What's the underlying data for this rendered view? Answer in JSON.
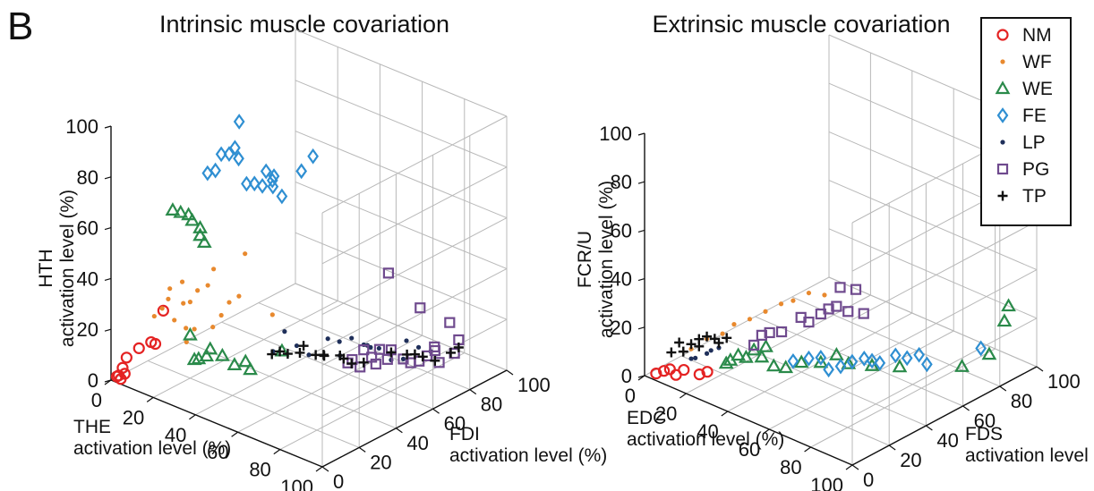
{
  "panel_label": "B",
  "legend": {
    "items": [
      {
        "label": "NM",
        "marker": "circle",
        "color": "#e42222"
      },
      {
        "label": "WF",
        "marker": "dot",
        "color": "#e8892e"
      },
      {
        "label": "WE",
        "marker": "triangle",
        "color": "#2a8a4a"
      },
      {
        "label": "FE",
        "marker": "diamond",
        "color": "#2f8fd2"
      },
      {
        "label": "LP",
        "marker": "dot",
        "color": "#1f2f5a"
      },
      {
        "label": "PG",
        "marker": "square",
        "color": "#6f4a8e"
      },
      {
        "label": "TP",
        "marker": "plus",
        "color": "#111111"
      }
    ]
  },
  "chart_data": [
    {
      "type": "scatter",
      "title": "Intrinsic muscle covariation",
      "xlabel": [
        "THE",
        "activation level (%)"
      ],
      "ylabel": [
        "FDI",
        "activation level (%)"
      ],
      "zlabel": [
        "HTH",
        "activation level (%)"
      ],
      "xticks": [
        "0",
        "20",
        "40",
        "60",
        "80",
        "100"
      ],
      "yticks": [
        "0",
        "20",
        "40",
        "60",
        "80",
        "100"
      ],
      "zticks": [
        "0",
        "20",
        "40",
        "60",
        "80",
        "100"
      ],
      "xlim": [
        0,
        100
      ],
      "ylim": [
        0,
        100
      ],
      "zlim": [
        0,
        100
      ],
      "grid": true,
      "series": [
        {
          "name": "NM",
          "points": [
            [
              3,
              5,
              8
            ],
            [
              2,
              4,
              4
            ],
            [
              1,
              3,
              1
            ],
            [
              2,
              3,
              0
            ],
            [
              1,
              2,
              1
            ],
            [
              3,
              4,
              2
            ],
            [
              8,
              6,
              13
            ],
            [
              12,
              8,
              16
            ],
            [
              14,
              8,
              16
            ],
            [
              16,
              10,
              29
            ]
          ]
        },
        {
          "name": "WF",
          "points": [
            [
              10,
              12,
              24
            ],
            [
              12,
              14,
              27
            ],
            [
              14,
              15,
              31
            ],
            [
              13,
              17,
              34
            ],
            [
              16,
              16,
              23
            ],
            [
              18,
              18,
              38
            ],
            [
              20,
              20,
              30
            ],
            [
              15,
              22,
              27
            ],
            [
              20,
              24,
              33
            ],
            [
              22,
              20,
              20
            ],
            [
              24,
              25,
              36
            ],
            [
              25,
              27,
              42
            ],
            [
              18,
              20,
              19
            ],
            [
              26,
              30,
              23
            ],
            [
              28,
              32,
              28
            ],
            [
              30,
              35,
              30
            ],
            [
              20,
              18,
              15
            ],
            [
              22,
              30,
              17
            ],
            [
              32,
              36,
              47
            ],
            [
              38,
              44,
              22
            ]
          ]
        },
        {
          "name": "WE",
          "points": [
            [
              10,
              22,
              62
            ],
            [
              12,
              24,
              61
            ],
            [
              14,
              26,
              60
            ],
            [
              14,
              28,
              57
            ],
            [
              16,
              30,
              54
            ],
            [
              16,
              30,
              51
            ],
            [
              18,
              30,
              49
            ],
            [
              20,
              20,
              17
            ],
            [
              22,
              20,
              8
            ],
            [
              24,
              20,
              9
            ],
            [
              26,
              22,
              10
            ],
            [
              26,
              24,
              12
            ],
            [
              30,
              26,
              10
            ],
            [
              34,
              28,
              7
            ],
            [
              38,
              32,
              5
            ],
            [
              34,
              34,
              6
            ],
            [
              46,
              40,
              12
            ]
          ]
        },
        {
          "name": "FE",
          "points": [
            [
              16,
              34,
              74
            ],
            [
              18,
              36,
              75
            ],
            [
              19,
              38,
              81
            ],
            [
              21,
              40,
              81
            ],
            [
              22,
              42,
              83
            ],
            [
              24,
              42,
              94
            ],
            [
              22,
              44,
              78
            ],
            [
              24,
              46,
              68
            ],
            [
              26,
              48,
              68
            ],
            [
              28,
              50,
              67
            ],
            [
              28,
              52,
              72
            ],
            [
              30,
              54,
              70
            ],
            [
              32,
              56,
              62
            ],
            [
              26,
              58,
              63
            ],
            [
              24,
              60,
              64
            ],
            [
              36,
              62,
              71
            ],
            [
              38,
              66,
              76
            ]
          ]
        },
        {
          "name": "LP",
          "points": [
            [
              40,
              42,
              9
            ],
            [
              42,
              46,
              16
            ],
            [
              46,
              48,
              11
            ],
            [
              50,
              50,
              8
            ],
            [
              52,
              58,
              12
            ],
            [
              56,
              60,
              6
            ],
            [
              54,
              62,
              10
            ],
            [
              58,
              64,
              12
            ],
            [
              62,
              66,
              10
            ],
            [
              62,
              68,
              9
            ],
            [
              60,
              72,
              6
            ],
            [
              64,
              72,
              7
            ],
            [
              68,
              74,
              3
            ],
            [
              72,
              76,
              4
            ],
            [
              70,
              80,
              9
            ],
            [
              74,
              82,
              7
            ],
            [
              78,
              84,
              6
            ]
          ]
        },
        {
          "name": "PG",
          "points": [
            [
              58,
              62,
              3
            ],
            [
              60,
              62,
              5
            ],
            [
              62,
              64,
              2
            ],
            [
              62,
              66,
              8
            ],
            [
              64,
              68,
              5
            ],
            [
              66,
              68,
              3
            ],
            [
              66,
              70,
              8
            ],
            [
              68,
              72,
              4
            ],
            [
              68,
              74,
              7
            ],
            [
              72,
              76,
              4
            ],
            [
              72,
              80,
              1
            ],
            [
              76,
              80,
              3
            ],
            [
              78,
              82,
              5
            ],
            [
              82,
              84,
              3
            ],
            [
              80,
              84,
              7
            ],
            [
              78,
              86,
              7
            ],
            [
              84,
              90,
              5
            ],
            [
              86,
              90,
              11
            ],
            [
              80,
              92,
              15
            ],
            [
              66,
              92,
              16
            ],
            [
              58,
              84,
              30
            ]
          ]
        },
        {
          "name": "TP",
          "points": [
            [
              36,
              46,
              5
            ],
            [
              38,
              48,
              6
            ],
            [
              40,
              50,
              5
            ],
            [
              44,
              52,
              6
            ],
            [
              44,
              54,
              8
            ],
            [
              48,
              56,
              5
            ],
            [
              52,
              56,
              6
            ],
            [
              50,
              58,
              5
            ],
            [
              56,
              60,
              6
            ],
            [
              56,
              62,
              4
            ],
            [
              58,
              64,
              2
            ],
            [
              62,
              66,
              3
            ],
            [
              68,
              74,
              6
            ],
            [
              72,
              78,
              5
            ],
            [
              74,
              80,
              5
            ],
            [
              76,
              82,
              4
            ],
            [
              80,
              84,
              3
            ],
            [
              84,
              88,
              6
            ],
            [
              86,
              90,
              8
            ]
          ]
        }
      ]
    },
    {
      "type": "scatter",
      "title": "Extrinsic muscle covariation",
      "xlabel": [
        "EDC",
        "activation level (%)"
      ],
      "ylabel": [
        "FDS",
        "activation level (%)"
      ],
      "zlabel": [
        "FCR/U",
        "activation level (%)"
      ],
      "xticks": [
        "0",
        "20",
        "40",
        "60",
        "80",
        "100"
      ],
      "yticks": [
        "0",
        "20",
        "40",
        "60",
        "80",
        "100"
      ],
      "zticks": [
        "0",
        "20",
        "40",
        "60",
        "80",
        "100"
      ],
      "xlim": [
        0,
        100
      ],
      "ylim": [
        0,
        100
      ],
      "zlim": [
        0,
        100
      ],
      "grid": true,
      "series": [
        {
          "name": "NM",
          "points": [
            [
              2,
              4,
              0
            ],
            [
              4,
              6,
              1
            ],
            [
              6,
              7,
              2
            ],
            [
              8,
              8,
              0
            ],
            [
              10,
              10,
              2
            ],
            [
              14,
              14,
              0
            ],
            [
              16,
              16,
              1
            ]
          ]
        },
        {
          "name": "WF",
          "points": [
            [
              10,
              14,
              9
            ],
            [
              14,
              18,
              13
            ],
            [
              18,
              22,
              15
            ],
            [
              20,
              26,
              18
            ],
            [
              24,
              30,
              20
            ],
            [
              28,
              34,
              23
            ],
            [
              32,
              38,
              26
            ],
            [
              36,
              40,
              28
            ],
            [
              40,
              44,
              31
            ],
            [
              44,
              48,
              30
            ]
          ]
        },
        {
          "name": "WE",
          "points": [
            [
              18,
              24,
              2
            ],
            [
              20,
              24,
              4
            ],
            [
              22,
              26,
              6
            ],
            [
              24,
              28,
              5
            ],
            [
              26,
              30,
              8
            ],
            [
              28,
              32,
              5
            ],
            [
              30,
              32,
              10
            ],
            [
              32,
              34,
              2
            ],
            [
              36,
              36,
              2
            ],
            [
              40,
              40,
              4
            ],
            [
              44,
              46,
              3
            ],
            [
              48,
              50,
              6
            ],
            [
              52,
              52,
              3
            ],
            [
              58,
              58,
              2
            ],
            [
              66,
              64,
              2
            ],
            [
              80,
              82,
              0
            ],
            [
              86,
              90,
              4
            ],
            [
              88,
              96,
              16
            ],
            [
              90,
              96,
              23
            ]
          ]
        },
        {
          "name": "FE",
          "points": [
            [
              36,
              40,
              3
            ],
            [
              40,
              44,
              4
            ],
            [
              44,
              46,
              5
            ],
            [
              46,
              48,
              0
            ],
            [
              50,
              50,
              2
            ],
            [
              52,
              54,
              3
            ],
            [
              56,
              56,
              5
            ],
            [
              58,
              58,
              4
            ],
            [
              60,
              60,
              3
            ],
            [
              64,
              64,
              6
            ],
            [
              66,
              68,
              4
            ],
            [
              70,
              70,
              6
            ],
            [
              72,
              72,
              2
            ],
            [
              82,
              90,
              5
            ]
          ]
        },
        {
          "name": "LP",
          "points": [
            [
              10,
              14,
              5
            ],
            [
              12,
              14,
              6
            ],
            [
              14,
              18,
              7
            ],
            [
              16,
              18,
              9
            ],
            [
              18,
              20,
              10
            ]
          ]
        },
        {
          "name": "PG",
          "points": [
            [
              26,
              30,
              10
            ],
            [
              28,
              32,
              14
            ],
            [
              30,
              34,
              15
            ],
            [
              34,
              36,
              16
            ],
            [
              38,
              42,
              21
            ],
            [
              40,
              44,
              19
            ],
            [
              44,
              46,
              23
            ],
            [
              46,
              48,
              25
            ],
            [
              48,
              50,
              26
            ],
            [
              48,
              52,
              33
            ],
            [
              52,
              56,
              32
            ],
            [
              50,
              54,
              23
            ],
            [
              54,
              58,
              22
            ]
          ]
        },
        {
          "name": "TP",
          "points": [
            [
              4,
              10,
              7
            ],
            [
              6,
              12,
              11
            ],
            [
              8,
              12,
              8
            ],
            [
              10,
              14,
              11
            ],
            [
              12,
              16,
              13
            ],
            [
              14,
              18,
              14
            ],
            [
              16,
              20,
              13
            ],
            [
              18,
              20,
              12
            ],
            [
              20,
              22,
              14
            ],
            [
              12,
              16,
              10
            ]
          ]
        }
      ]
    }
  ]
}
